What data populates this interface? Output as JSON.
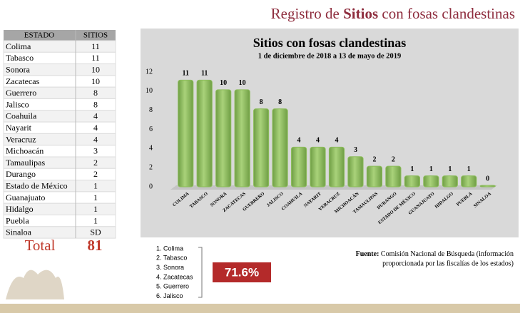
{
  "header": {
    "title_parts": [
      "Registro de ",
      "Sitios",
      " con fosas clandestinas"
    ]
  },
  "table": {
    "columns": [
      "ESTADO",
      "SITIOS"
    ],
    "rows": [
      [
        "Colima",
        11
      ],
      [
        "Tabasco",
        11
      ],
      [
        "Sonora",
        10
      ],
      [
        "Zacatecas",
        10
      ],
      [
        "Guerrero",
        8
      ],
      [
        "Jalisco",
        8
      ],
      [
        "Coahuila",
        4
      ],
      [
        "Nayarit",
        4
      ],
      [
        "Veracruz",
        4
      ],
      [
        "Michoacán",
        3
      ],
      [
        "Tamaulipas",
        2
      ],
      [
        "Durango",
        2
      ],
      [
        "Estado de México",
        1
      ],
      [
        "Guanajuato",
        1
      ],
      [
        "Hidalgo",
        1
      ],
      [
        "Puebla",
        1
      ],
      [
        "Sinaloa",
        "SD"
      ]
    ],
    "total": [
      "Total",
      81
    ]
  },
  "chart_data": {
    "type": "bar",
    "title": "Sitios con fosas clandestinas",
    "subtitle": "1 de diciembre de 2018 a 13 de mayo de 2019",
    "categories": [
      "COLIMA",
      "TABASCO",
      "SONORA",
      "ZACATECAS",
      "GUERRERO",
      "JALISCO",
      "COAHUILA",
      "NAYARIT",
      "VERACRUZ",
      "MICHOACÁN",
      "TAMAULIPAS",
      "DURANGO",
      "ESTADO DE MÉXICO",
      "GUANAJUATO",
      "HIDALGO",
      "PUEBLA",
      "SINALOA"
    ],
    "values": [
      11,
      11,
      10,
      10,
      8,
      8,
      4,
      4,
      4,
      3,
      2,
      2,
      1,
      1,
      1,
      1,
      0
    ],
    "color": "#8dbd5c",
    "ylim": [
      0,
      12
    ],
    "yticks": [
      0,
      2,
      4,
      6,
      8,
      10,
      12
    ],
    "grid": false
  },
  "ranking": {
    "items": [
      "1. Colima",
      "2. Tabasco",
      "3. Sonora",
      "4. Zacatecas",
      "5. Guerrero",
      "6. Jalisco"
    ],
    "share": "71.6%"
  },
  "source": {
    "label": "Fuente:",
    "lines": [
      "Comisión Nacional de Búsqueda (información",
      "proporcionada por las fiscalías de los estados)"
    ]
  }
}
